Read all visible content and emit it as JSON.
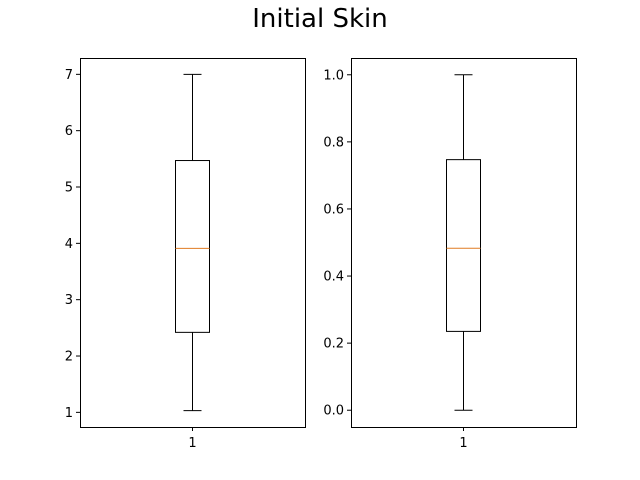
{
  "figure": {
    "title": "Initial Skin"
  },
  "colors": {
    "box": "#000000",
    "median": "#e07b22",
    "axes": "#000000",
    "background": "#ffffff"
  },
  "chart_data": [
    {
      "type": "box",
      "title": "",
      "xlabel": "",
      "ylabel": "",
      "categories": [
        "1"
      ],
      "box": {
        "whisker_low": 1.03,
        "q1": 2.42,
        "median": 3.91,
        "q3": 5.47,
        "whisker_high": 7.0
      },
      "ylim": [
        0.74,
        7.29
      ],
      "yticks": [
        1,
        2,
        3,
        4,
        5,
        6,
        7
      ],
      "ytick_labels": [
        "1",
        "2",
        "3",
        "4",
        "5",
        "6",
        "7"
      ],
      "grid": false,
      "legend": null
    },
    {
      "type": "box",
      "title": "",
      "xlabel": "",
      "ylabel": "",
      "categories": [
        "1"
      ],
      "box": {
        "whisker_low": 0.0,
        "q1": 0.235,
        "median": 0.483,
        "q3": 0.747,
        "whisker_high": 1.0
      },
      "ylim": [
        -0.05,
        1.05
      ],
      "yticks": [
        0.0,
        0.2,
        0.4,
        0.6,
        0.8,
        1.0
      ],
      "ytick_labels": [
        "0.0",
        "0.2",
        "0.4",
        "0.6",
        "0.8",
        "1.0"
      ],
      "grid": false,
      "legend": null
    }
  ]
}
